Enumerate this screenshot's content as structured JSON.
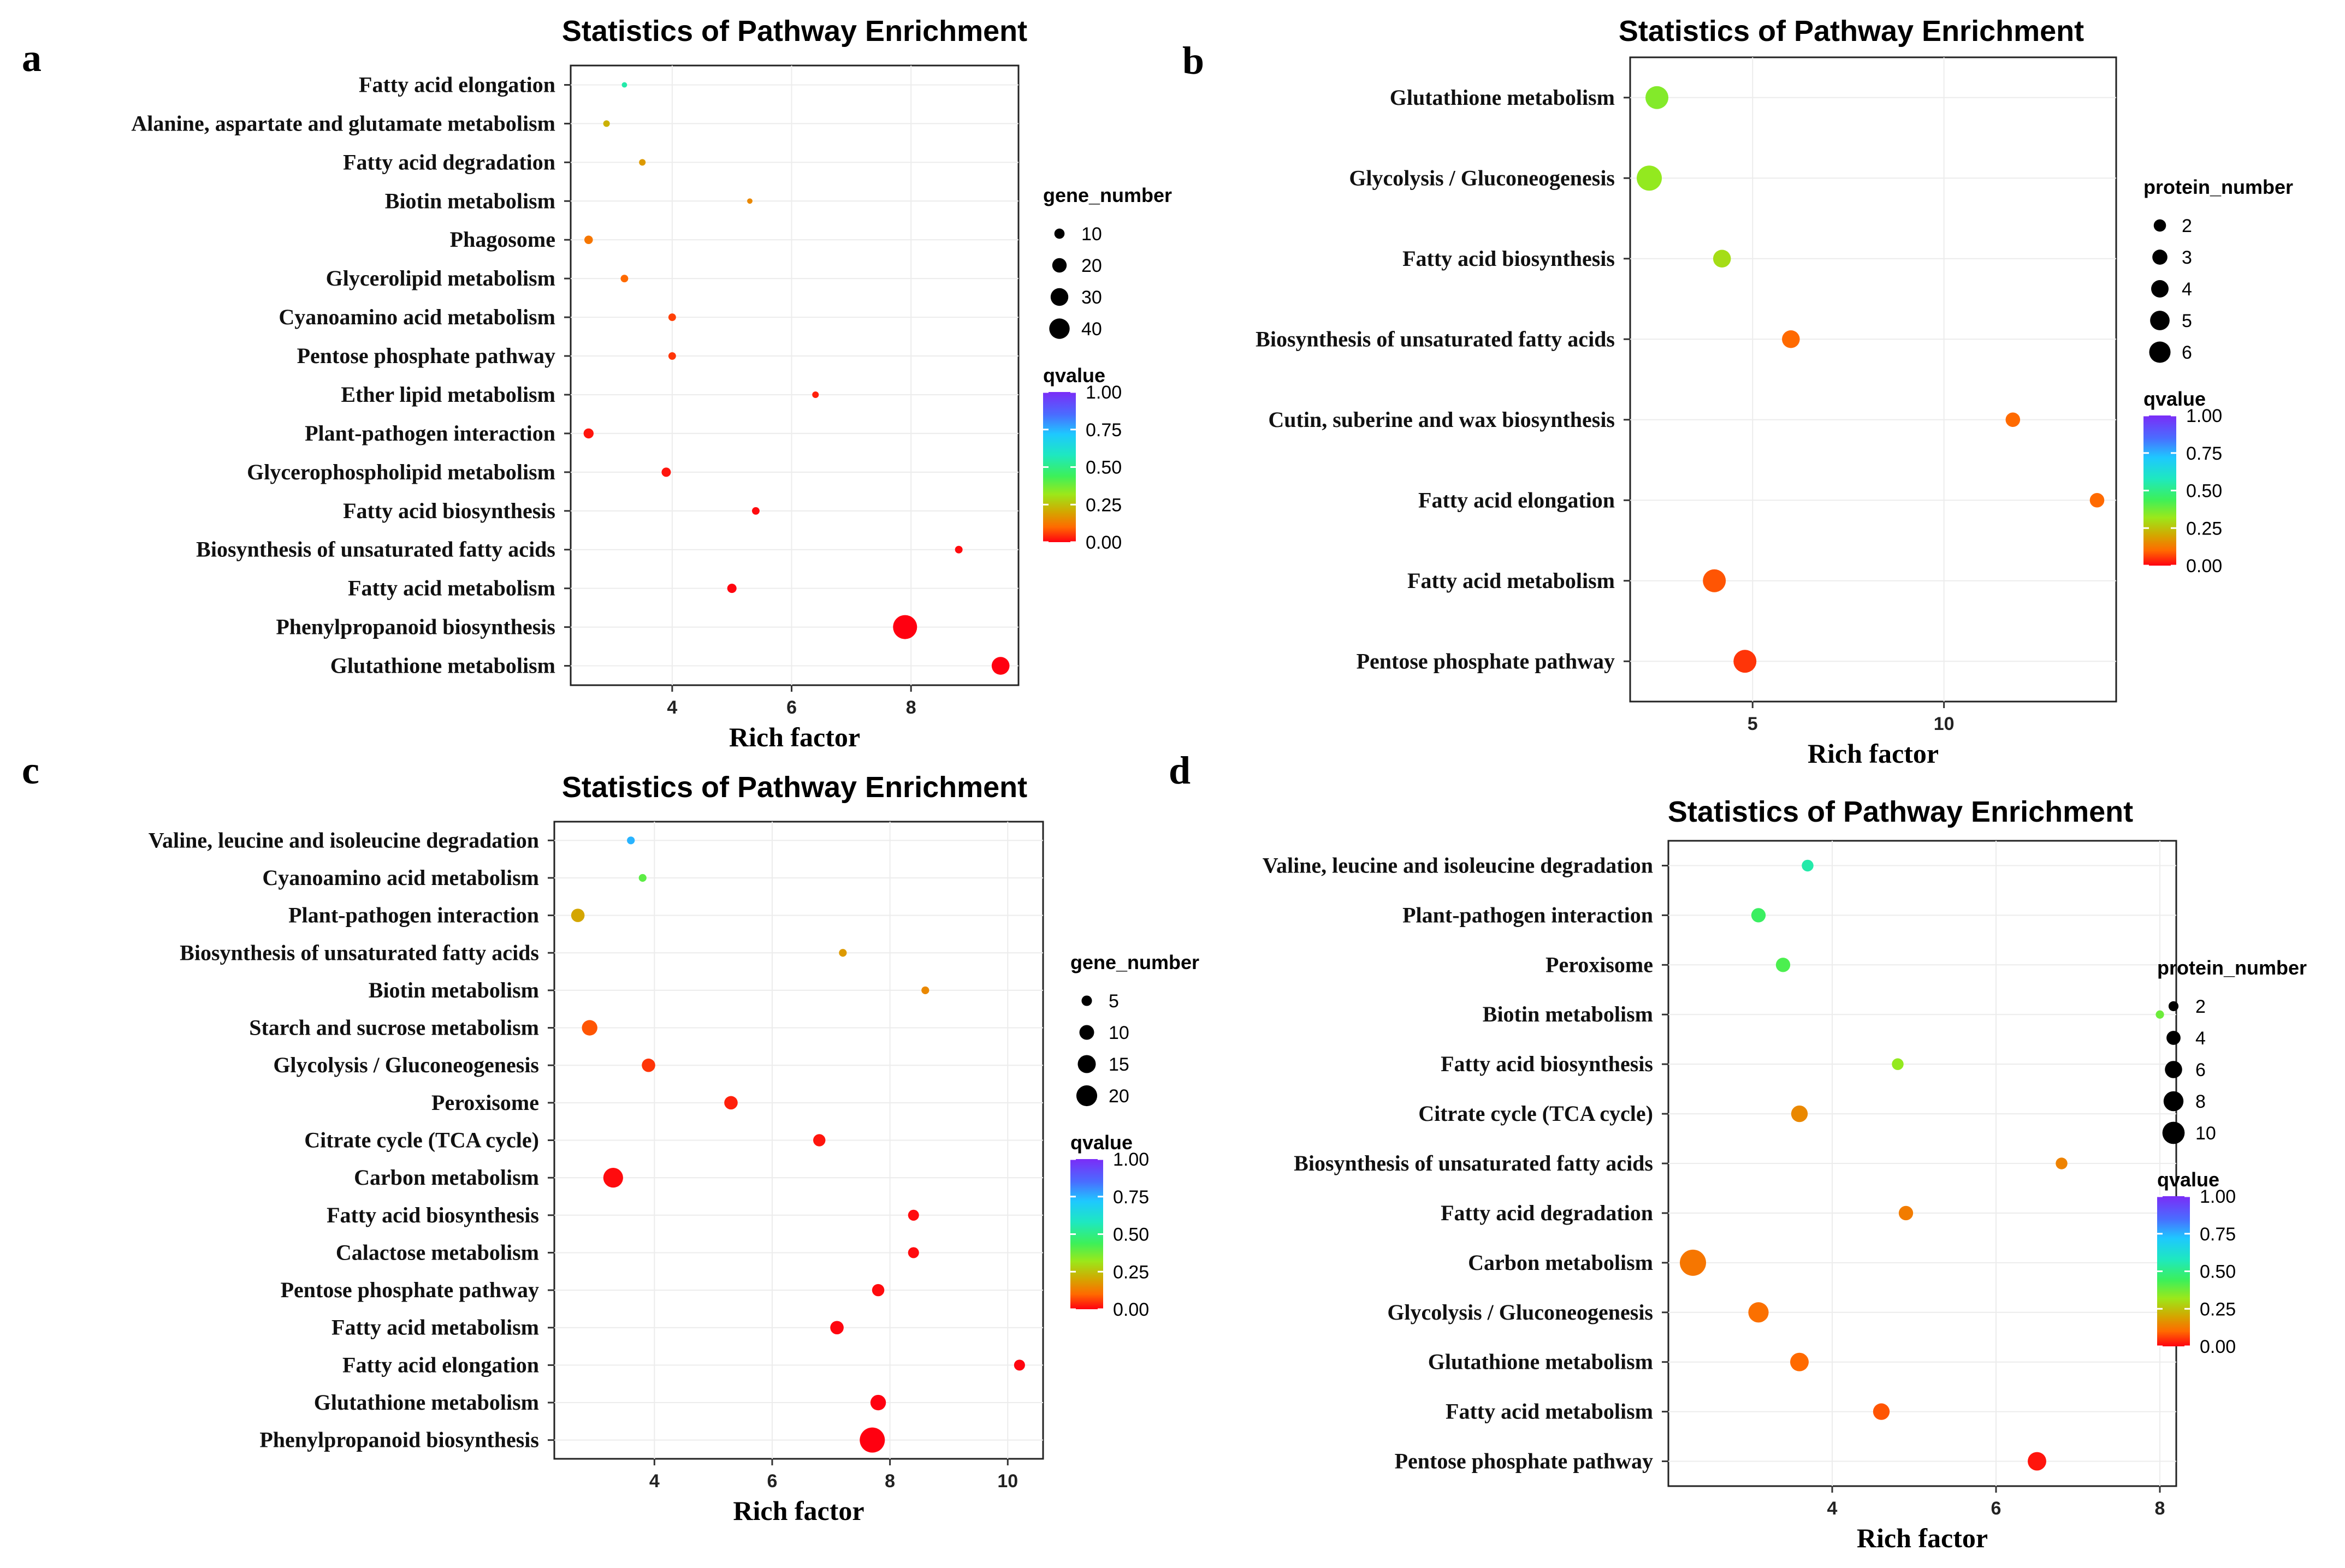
{
  "chart_data": [
    {
      "type": "scatter",
      "panel": "a",
      "title": "Statistics of Pathway Enrichment",
      "xlabel": "Rich factor",
      "ylabel": "",
      "x_ticks": [
        4,
        6,
        8
      ],
      "xlim": [
        2.3,
        9.8
      ],
      "grid": true,
      "legend_position": "right",
      "size_legend": {
        "title": "gene_number",
        "values": [
          10,
          20,
          30,
          40
        ],
        "labels": [
          "10",
          "20",
          "30",
          "40"
        ]
      },
      "color_legend": {
        "title": "qvalue",
        "ticks": [
          1.0,
          0.75,
          0.5,
          0.25,
          0.0
        ],
        "labels": [
          "1.00",
          "0.75",
          "0.50",
          "0.25",
          "0.00"
        ]
      },
      "points": [
        {
          "pathway": "Fatty acid elongation",
          "rich_factor": 3.2,
          "size": 2,
          "qvalue": 0.55
        },
        {
          "pathway": "Alanine, aspartate and glutamate metabolism",
          "rich_factor": 2.9,
          "size": 3,
          "qvalue": 0.22
        },
        {
          "pathway": "Fatty acid degradation",
          "rich_factor": 3.5,
          "size": 3,
          "qvalue": 0.18
        },
        {
          "pathway": "Biotin metabolism",
          "rich_factor": 5.3,
          "size": 2,
          "qvalue": 0.15
        },
        {
          "pathway": "Phagosome",
          "rich_factor": 2.6,
          "size": 5,
          "qvalue": 0.12
        },
        {
          "pathway": "Glycerolipid metabolism",
          "rich_factor": 3.2,
          "size": 4,
          "qvalue": 0.1
        },
        {
          "pathway": "Cyanoamino acid metabolism",
          "rich_factor": 4.0,
          "size": 4,
          "qvalue": 0.06
        },
        {
          "pathway": "Pentose phosphate pathway",
          "rich_factor": 4.0,
          "size": 4,
          "qvalue": 0.05
        },
        {
          "pathway": "Ether lipid metabolism",
          "rich_factor": 6.4,
          "size": 3,
          "qvalue": 0.03
        },
        {
          "pathway": "Plant-pathogen interaction",
          "rich_factor": 2.6,
          "size": 7,
          "qvalue": 0.02
        },
        {
          "pathway": "Glycerophospholipid metabolism",
          "rich_factor": 3.9,
          "size": 6,
          "qvalue": 0.02
        },
        {
          "pathway": "Fatty acid biosynthesis",
          "rich_factor": 5.4,
          "size": 4,
          "qvalue": 0.01
        },
        {
          "pathway": "Biosynthesis of unsaturated fatty acids",
          "rich_factor": 8.8,
          "size": 4,
          "qvalue": 0.01
        },
        {
          "pathway": "Fatty acid metabolism",
          "rich_factor": 5.0,
          "size": 6,
          "qvalue": 0.005
        },
        {
          "pathway": "Phenylpropanoid biosynthesis",
          "rich_factor": 7.9,
          "size": 40,
          "qvalue": 0.0
        },
        {
          "pathway": "Glutathione metabolism",
          "rich_factor": 9.5,
          "size": 22,
          "qvalue": 0.0
        }
      ]
    },
    {
      "type": "scatter",
      "panel": "b",
      "title": "Statistics of Pathway Enrichment",
      "xlabel": "Rich factor",
      "ylabel": "",
      "x_ticks": [
        5,
        10
      ],
      "xlim": [
        1.8,
        14.5
      ],
      "grid": true,
      "legend_position": "right",
      "size_legend": {
        "title": "protein_number",
        "values": [
          2,
          3,
          4,
          5,
          6
        ],
        "labels": [
          "2",
          "3",
          "4",
          "5",
          "6"
        ]
      },
      "color_legend": {
        "title": "qvalue",
        "ticks": [
          1.0,
          0.75,
          0.5,
          0.25,
          0.0
        ],
        "labels": [
          "1.00",
          "0.75",
          "0.50",
          "0.25",
          "0.00"
        ]
      },
      "points": [
        {
          "pathway": "Glutathione metabolism",
          "rich_factor": 2.5,
          "size": 5,
          "qvalue": 0.35
        },
        {
          "pathway": "Glycolysis / Gluconeogenesis",
          "rich_factor": 2.3,
          "size": 6,
          "qvalue": 0.33
        },
        {
          "pathway": "Fatty acid biosynthesis",
          "rich_factor": 4.2,
          "size": 3,
          "qvalue": 0.3
        },
        {
          "pathway": "Biosynthesis of unsaturated fatty acids",
          "rich_factor": 6.0,
          "size": 3,
          "qvalue": 0.1
        },
        {
          "pathway": "Cutin, suberine and wax biosynthesis",
          "rich_factor": 11.8,
          "size": 2,
          "qvalue": 0.1
        },
        {
          "pathway": "Fatty acid elongation",
          "rich_factor": 14.0,
          "size": 2,
          "qvalue": 0.1
        },
        {
          "pathway": "Fatty acid metabolism",
          "rich_factor": 4.0,
          "size": 5,
          "qvalue": 0.08
        },
        {
          "pathway": "Pentose phosphate pathway",
          "rich_factor": 4.8,
          "size": 5,
          "qvalue": 0.05
        }
      ]
    },
    {
      "type": "scatter",
      "panel": "c",
      "title": "Statistics of Pathway Enrichment",
      "xlabel": "Rich factor",
      "ylabel": "",
      "x_ticks": [
        4,
        6,
        8,
        10
      ],
      "xlim": [
        2.3,
        10.6
      ],
      "grid": true,
      "legend_position": "right",
      "size_legend": {
        "title": "gene_number",
        "values": [
          5,
          10,
          15,
          20
        ],
        "labels": [
          "5",
          "10",
          "15",
          "20"
        ]
      },
      "color_legend": {
        "title": "qvalue",
        "ticks": [
          1.0,
          0.75,
          0.5,
          0.25,
          0.0
        ],
        "labels": [
          "1.00",
          "0.75",
          "0.50",
          "0.25",
          "0.00"
        ]
      },
      "points": [
        {
          "pathway": "Valine, leucine and isoleucine degradation",
          "rich_factor": 3.6,
          "size": 2,
          "qvalue": 0.75
        },
        {
          "pathway": "Cyanoamino acid metabolism",
          "rich_factor": 3.8,
          "size": 2,
          "qvalue": 0.4
        },
        {
          "pathway": "Plant-pathogen interaction",
          "rich_factor": 2.7,
          "size": 6,
          "qvalue": 0.2
        },
        {
          "pathway": "Biosynthesis of unsaturated fatty acids",
          "rich_factor": 7.2,
          "size": 2,
          "qvalue": 0.18
        },
        {
          "pathway": "Biotin metabolism",
          "rich_factor": 8.6,
          "size": 2,
          "qvalue": 0.15
        },
        {
          "pathway": "Starch and sucrose metabolism",
          "rich_factor": 2.9,
          "size": 8,
          "qvalue": 0.08
        },
        {
          "pathway": "Glycolysis / Gluconeogenesis",
          "rich_factor": 3.9,
          "size": 6,
          "qvalue": 0.05
        },
        {
          "pathway": "Peroxisome",
          "rich_factor": 5.3,
          "size": 6,
          "qvalue": 0.03
        },
        {
          "pathway": "Citrate cycle (TCA cycle)",
          "rich_factor": 6.8,
          "size": 5,
          "qvalue": 0.02
        },
        {
          "pathway": "Carbon metabolism",
          "rich_factor": 3.3,
          "size": 13,
          "qvalue": 0.01
        },
        {
          "pathway": "Fatty acid biosynthesis",
          "rich_factor": 8.4,
          "size": 4,
          "qvalue": 0.01
        },
        {
          "pathway": "Calactose metabolism",
          "rich_factor": 8.4,
          "size": 4,
          "qvalue": 0.01
        },
        {
          "pathway": "Pentose phosphate pathway",
          "rich_factor": 7.8,
          "size": 5,
          "qvalue": 0.01
        },
        {
          "pathway": "Fatty acid metabolism",
          "rich_factor": 7.1,
          "size": 6,
          "qvalue": 0.005
        },
        {
          "pathway": "Fatty acid elongation",
          "rich_factor": 10.2,
          "size": 4,
          "qvalue": 0.005
        },
        {
          "pathway": "Glutathione metabolism",
          "rich_factor": 7.8,
          "size": 8,
          "qvalue": 0.0
        },
        {
          "pathway": "Phenylpropanoid biosynthesis",
          "rich_factor": 7.7,
          "size": 21,
          "qvalue": 0.0
        }
      ]
    },
    {
      "type": "scatter",
      "panel": "d",
      "title": "Statistics of Pathway Enrichment",
      "xlabel": "Rich factor",
      "ylabel": "",
      "x_ticks": [
        4,
        6,
        8
      ],
      "xlim": [
        2.0,
        8.2
      ],
      "grid": true,
      "legend_position": "right",
      "size_legend": {
        "title": "protein_number",
        "values": [
          2,
          4,
          6,
          8,
          10
        ],
        "labels": [
          "2",
          "4",
          "6",
          "8",
          "10"
        ]
      },
      "color_legend": {
        "title": "qvalue",
        "ticks": [
          1.0,
          0.75,
          0.5,
          0.25,
          0.0
        ],
        "labels": [
          "1.00",
          "0.75",
          "0.50",
          "0.25",
          "0.00"
        ]
      },
      "points": [
        {
          "pathway": "Valine, leucine and isoleucine degradation",
          "rich_factor": 3.7,
          "size": 2,
          "qvalue": 0.55
        },
        {
          "pathway": "Plant-pathogen interaction",
          "rich_factor": 3.1,
          "size": 3,
          "qvalue": 0.45
        },
        {
          "pathway": "Peroxisome",
          "rich_factor": 3.4,
          "size": 3,
          "qvalue": 0.42
        },
        {
          "pathway": "Biotin metabolism",
          "rich_factor": 8.0,
          "size": 1,
          "qvalue": 0.38
        },
        {
          "pathway": "Fatty acid biosynthesis",
          "rich_factor": 4.8,
          "size": 2,
          "qvalue": 0.33
        },
        {
          "pathway": "Citrate cycle (TCA cycle)",
          "rich_factor": 3.6,
          "size": 4,
          "qvalue": 0.15
        },
        {
          "pathway": "Biosynthesis of unsaturated fatty acids",
          "rich_factor": 6.8,
          "size": 2,
          "qvalue": 0.14
        },
        {
          "pathway": "Fatty acid degradation",
          "rich_factor": 4.9,
          "size": 3,
          "qvalue": 0.13
        },
        {
          "pathway": "Carbon metabolism",
          "rich_factor": 2.3,
          "size": 10,
          "qvalue": 0.12
        },
        {
          "pathway": "Glycolysis / Gluconeogenesis",
          "rich_factor": 3.1,
          "size": 6,
          "qvalue": 0.11
        },
        {
          "pathway": "Glutathione metabolism",
          "rich_factor": 3.6,
          "size": 5,
          "qvalue": 0.1
        },
        {
          "pathway": "Fatty acid metabolism",
          "rich_factor": 4.6,
          "size": 4,
          "qvalue": 0.08
        },
        {
          "pathway": "Pentose phosphate pathway",
          "rich_factor": 6.5,
          "size": 5,
          "qvalue": 0.02
        }
      ]
    }
  ]
}
